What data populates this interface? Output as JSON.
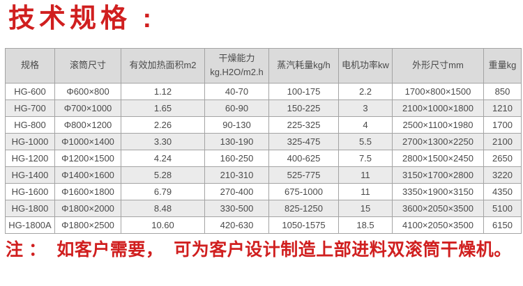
{
  "title": "技术规格 :",
  "colors": {
    "accent_red": "#d01f1f",
    "header_bg": "#dbdbdb",
    "stripe_bg": "#ebebeb",
    "border": "#a3a3a3",
    "text": "#4a4a4a"
  },
  "table": {
    "headers": [
      "规格",
      "滚筒尺寸",
      "有效加热面积m2",
      "干燥能力\nkg.H2O/m2.h",
      "蒸汽耗量kg/h",
      "电机功率kw",
      "外形尺寸mm",
      "重量kg"
    ],
    "rows": [
      [
        "HG-600",
        "Φ600×800",
        "1.12",
        "40-70",
        "100-175",
        "2.2",
        "1700×800×1500",
        "850"
      ],
      [
        "HG-700",
        "Φ700×1000",
        "1.65",
        "60-90",
        "150-225",
        "3",
        "2100×1000×1800",
        "1210"
      ],
      [
        "HG-800",
        "Φ800×1200",
        "2.26",
        "90-130",
        "225-325",
        "4",
        "2500×1100×1980",
        "1700"
      ],
      [
        "HG-1000",
        "Φ1000×1400",
        "3.30",
        "130-190",
        "325-475",
        "5.5",
        "2700×1300×2250",
        "2100"
      ],
      [
        "HG-1200",
        "Φ1200×1500",
        "4.24",
        "160-250",
        "400-625",
        "7.5",
        "2800×1500×2450",
        "2650"
      ],
      [
        "HG-1400",
        "Φ1400×1600",
        "5.28",
        "210-310",
        "525-775",
        "11",
        "3150×1700×2800",
        "3220"
      ],
      [
        "HG-1600",
        "Φ1600×1800",
        "6.79",
        "270-400",
        "675-1000",
        "11",
        "3350×1900×3150",
        "4350"
      ],
      [
        "HG-1800",
        "Φ1800×2000",
        "8.48",
        "330-500",
        "825-1250",
        "15",
        "3600×2050×3500",
        "5100"
      ],
      [
        "HG-1800A",
        "Φ1800×2500",
        "10.60",
        "420-630",
        "1050-1575",
        "18.5",
        "4100×2050×3500",
        "6150"
      ]
    ]
  },
  "note": "注 ：  如客户需要，  可为客户设计制造上部进料双滚筒干燥机。"
}
